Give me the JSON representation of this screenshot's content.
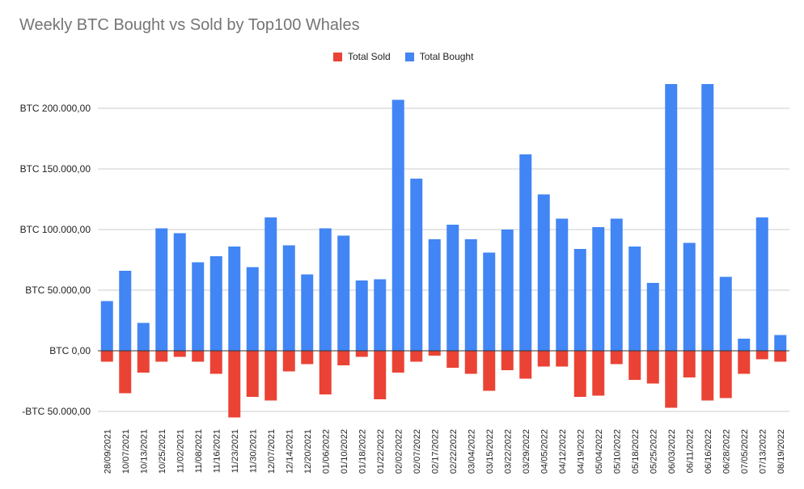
{
  "chart_data": {
    "type": "bar",
    "title": "Weekly BTC Bought vs Sold by Top100 Whales",
    "stacked": true,
    "legend_position": "top",
    "grid": true,
    "ylim": [
      -50000,
      220000
    ],
    "yticks": [
      {
        "value": 200000,
        "label": "BTC 200.000,00"
      },
      {
        "value": 150000,
        "label": "BTC 150.000,00"
      },
      {
        "value": 100000,
        "label": "BTC 100.000,00"
      },
      {
        "value": 50000,
        "label": "BTC 50.000,00"
      },
      {
        "value": 0,
        "label": "BTC 0,00"
      },
      {
        "value": -50000,
        "label": "-BTC 50.000,00"
      }
    ],
    "categories": [
      "28/09/2021",
      "10/07/2021",
      "10/13/2021",
      "10/25/2021",
      "11/02/2021",
      "11/08/2021",
      "11/16/2021",
      "11/23/2021",
      "11/30/2021",
      "12/07/2021",
      "12/14/2021",
      "12/20/2021",
      "01/06/2022",
      "01/10/2022",
      "01/18/2022",
      "01/22/2022",
      "02/02/2022",
      "02/07/2022",
      "02/17/2022",
      "02/22/2022",
      "03/04/2022",
      "03/15/2022",
      "03/22/2022",
      "03/29/2022",
      "04/05/2022",
      "04/12/2022",
      "04/19/2022",
      "05/04/2022",
      "05/10/2022",
      "05/18/2022",
      "05/25/2022",
      "06/03/2022",
      "06/11/2022",
      "06/16/2022",
      "06/28/2022",
      "07/05/2022",
      "07/13/2022",
      "08/19/2022"
    ],
    "series": [
      {
        "name": "Total Sold",
        "color": "#ea4335",
        "values": [
          -9000,
          -35000,
          -18000,
          -9000,
          -5000,
          -9000,
          -19000,
          -55000,
          -38000,
          -41000,
          -17000,
          -11000,
          -36000,
          -12000,
          -5000,
          -40000,
          -18000,
          -9000,
          -4000,
          -14000,
          -19000,
          -33000,
          -16000,
          -23000,
          -13000,
          -13000,
          -38000,
          -37000,
          -11000,
          -24000,
          -27000,
          -47000,
          -22000,
          -41000,
          -39000,
          -19000,
          -7000,
          -9000
        ]
      },
      {
        "name": "Total Bought",
        "color": "#4285f4",
        "values": [
          41000,
          66000,
          23000,
          101000,
          97000,
          73000,
          78000,
          86000,
          69000,
          110000,
          87000,
          63000,
          101000,
          95000,
          58000,
          59000,
          207000,
          142000,
          92000,
          104000,
          92000,
          81000,
          100000,
          162000,
          129000,
          109000,
          84000,
          102000,
          109000,
          86000,
          56000,
          220000,
          89000,
          220000,
          61000,
          10000,
          110000,
          13000
        ]
      }
    ]
  }
}
